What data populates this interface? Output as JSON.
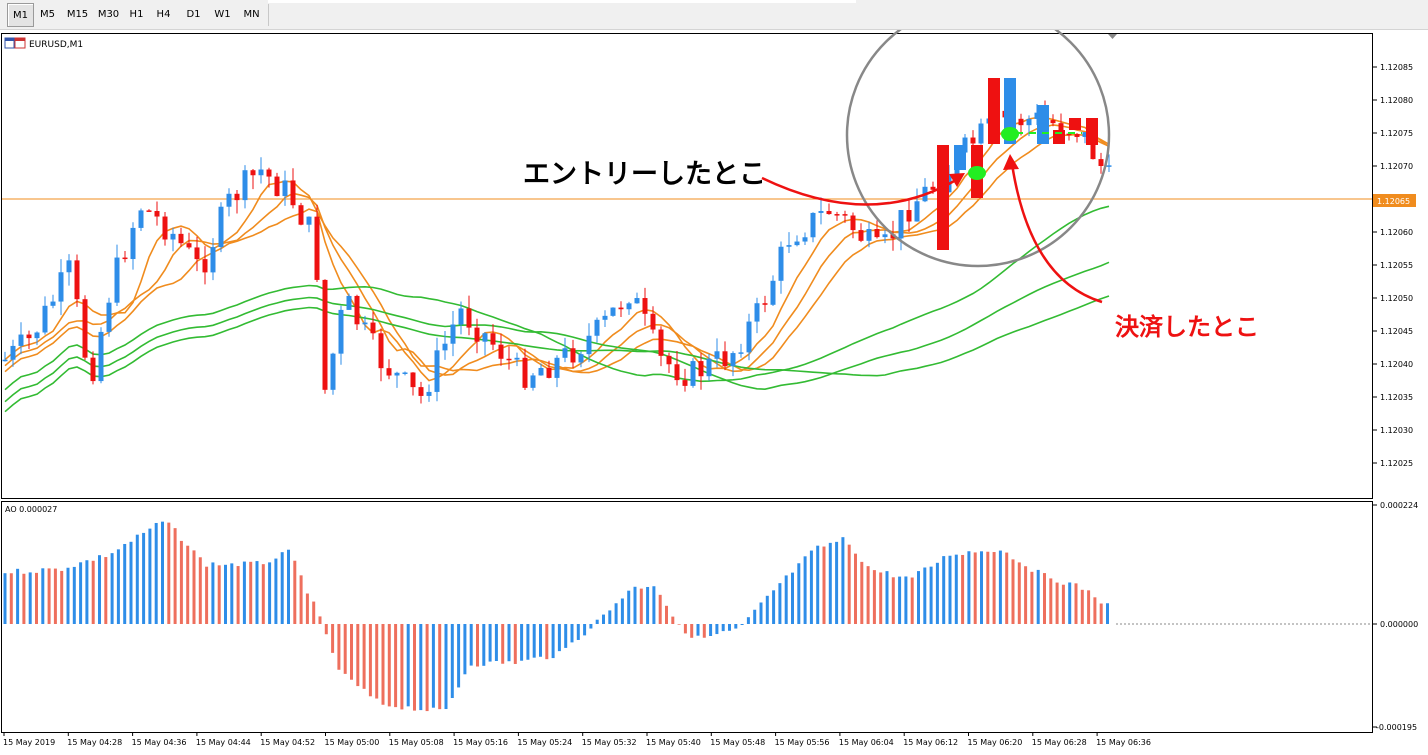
{
  "toolbar": {
    "timeframes": [
      "M1",
      "M5",
      "M15",
      "M30",
      "H1",
      "H4",
      "D1",
      "W1",
      "MN"
    ],
    "active": "M1"
  },
  "main_chart": {
    "symbol_label": "EURUSD,M1",
    "price_ticks": [
      "1.12085",
      "1.12080",
      "1.12075",
      "1.12070",
      "1.12060",
      "1.12055",
      "1.12050",
      "1.12045",
      "1.12040",
      "1.12035",
      "1.12030",
      "1.12025"
    ],
    "current_price_label": "1.12065",
    "current_price": 1.12065,
    "bull_color": "#2e8de8",
    "bear_color": "#ee1111",
    "ma_fast_color": "#f08c1e",
    "ma_slow_color": "#33bb33",
    "price_line_color": "#f08c1e"
  },
  "indicator": {
    "label": "AO 0.000027",
    "ticks": [
      "0.000224",
      "0.000000",
      "-0.000195"
    ],
    "up_color": "#2e8de8",
    "down_color": "#ee6f5d"
  },
  "time_axis": {
    "labels": [
      "15 May 2019",
      "15 May 04:28",
      "15 May 04:36",
      "15 May 04:44",
      "15 May 04:52",
      "15 May 05:00",
      "15 May 05:08",
      "15 May 05:16",
      "15 May 05:24",
      "15 May 05:32",
      "15 May 05:40",
      "15 May 05:48",
      "15 May 05:56",
      "15 May 06:04",
      "15 May 06:12",
      "15 May 06:20",
      "15 May 06:28",
      "15 May 06:36"
    ]
  },
  "annotations": {
    "entry_label": "エントリーしたとこ",
    "exit_label": "決済したとこ",
    "entry_color": "#000000",
    "exit_color": "#ee1111",
    "marker_color": "#22ee22"
  }
}
